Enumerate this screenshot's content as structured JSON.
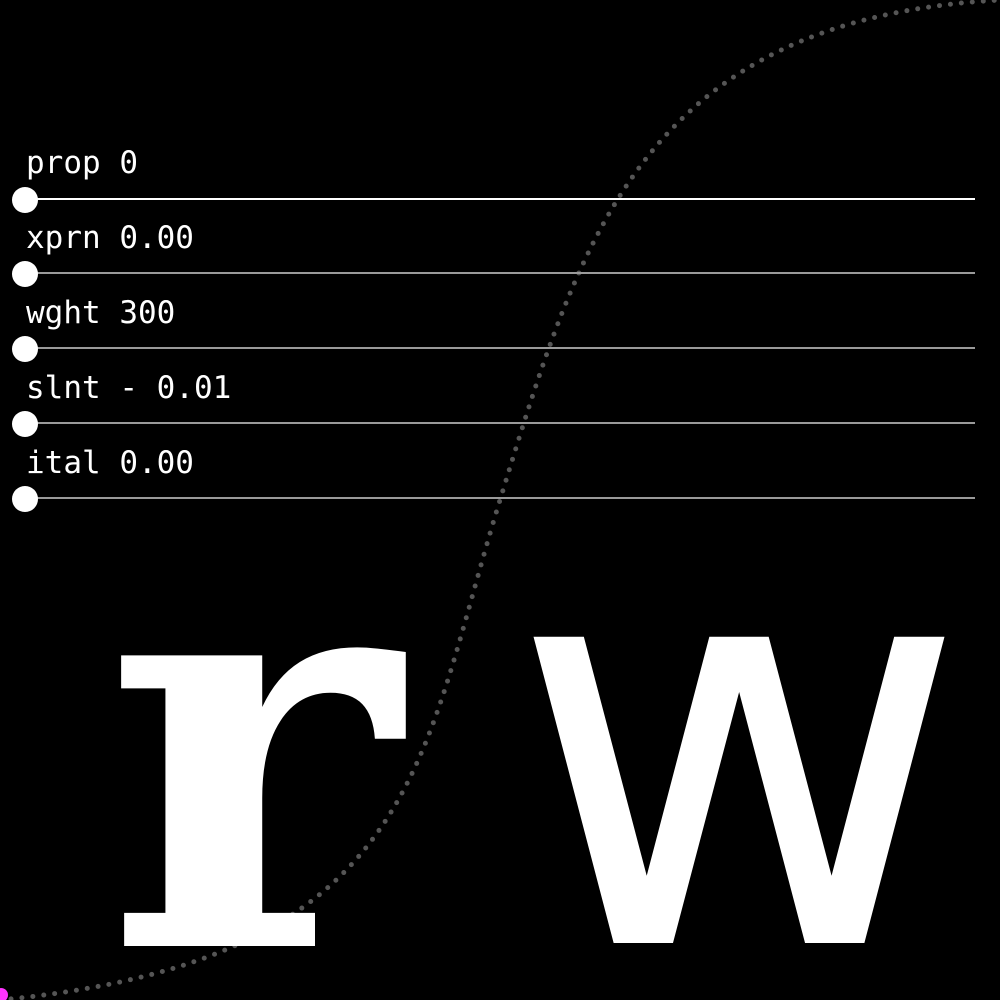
{
  "sliders": [
    {
      "axis": "prop",
      "label": "prop 0",
      "value": 0,
      "active": true
    },
    {
      "axis": "xprn",
      "label": "xprn 0.00",
      "value": 0.0,
      "active": false
    },
    {
      "axis": "wght",
      "label": "wght 300",
      "value": 300,
      "active": false
    },
    {
      "axis": "slnt",
      "label": "slnt - 0.01",
      "value": -0.01,
      "active": false
    },
    {
      "axis": "ital",
      "label": "ital 0.00",
      "value": 0.0,
      "active": false
    }
  ],
  "specimen": {
    "glyph_1": "r",
    "glyph_2": "w"
  },
  "colors": {
    "background": "#000000",
    "foreground": "#ffffff",
    "track": "#9a9a9a",
    "curve": "#555555",
    "accent": "#ff33ff"
  }
}
